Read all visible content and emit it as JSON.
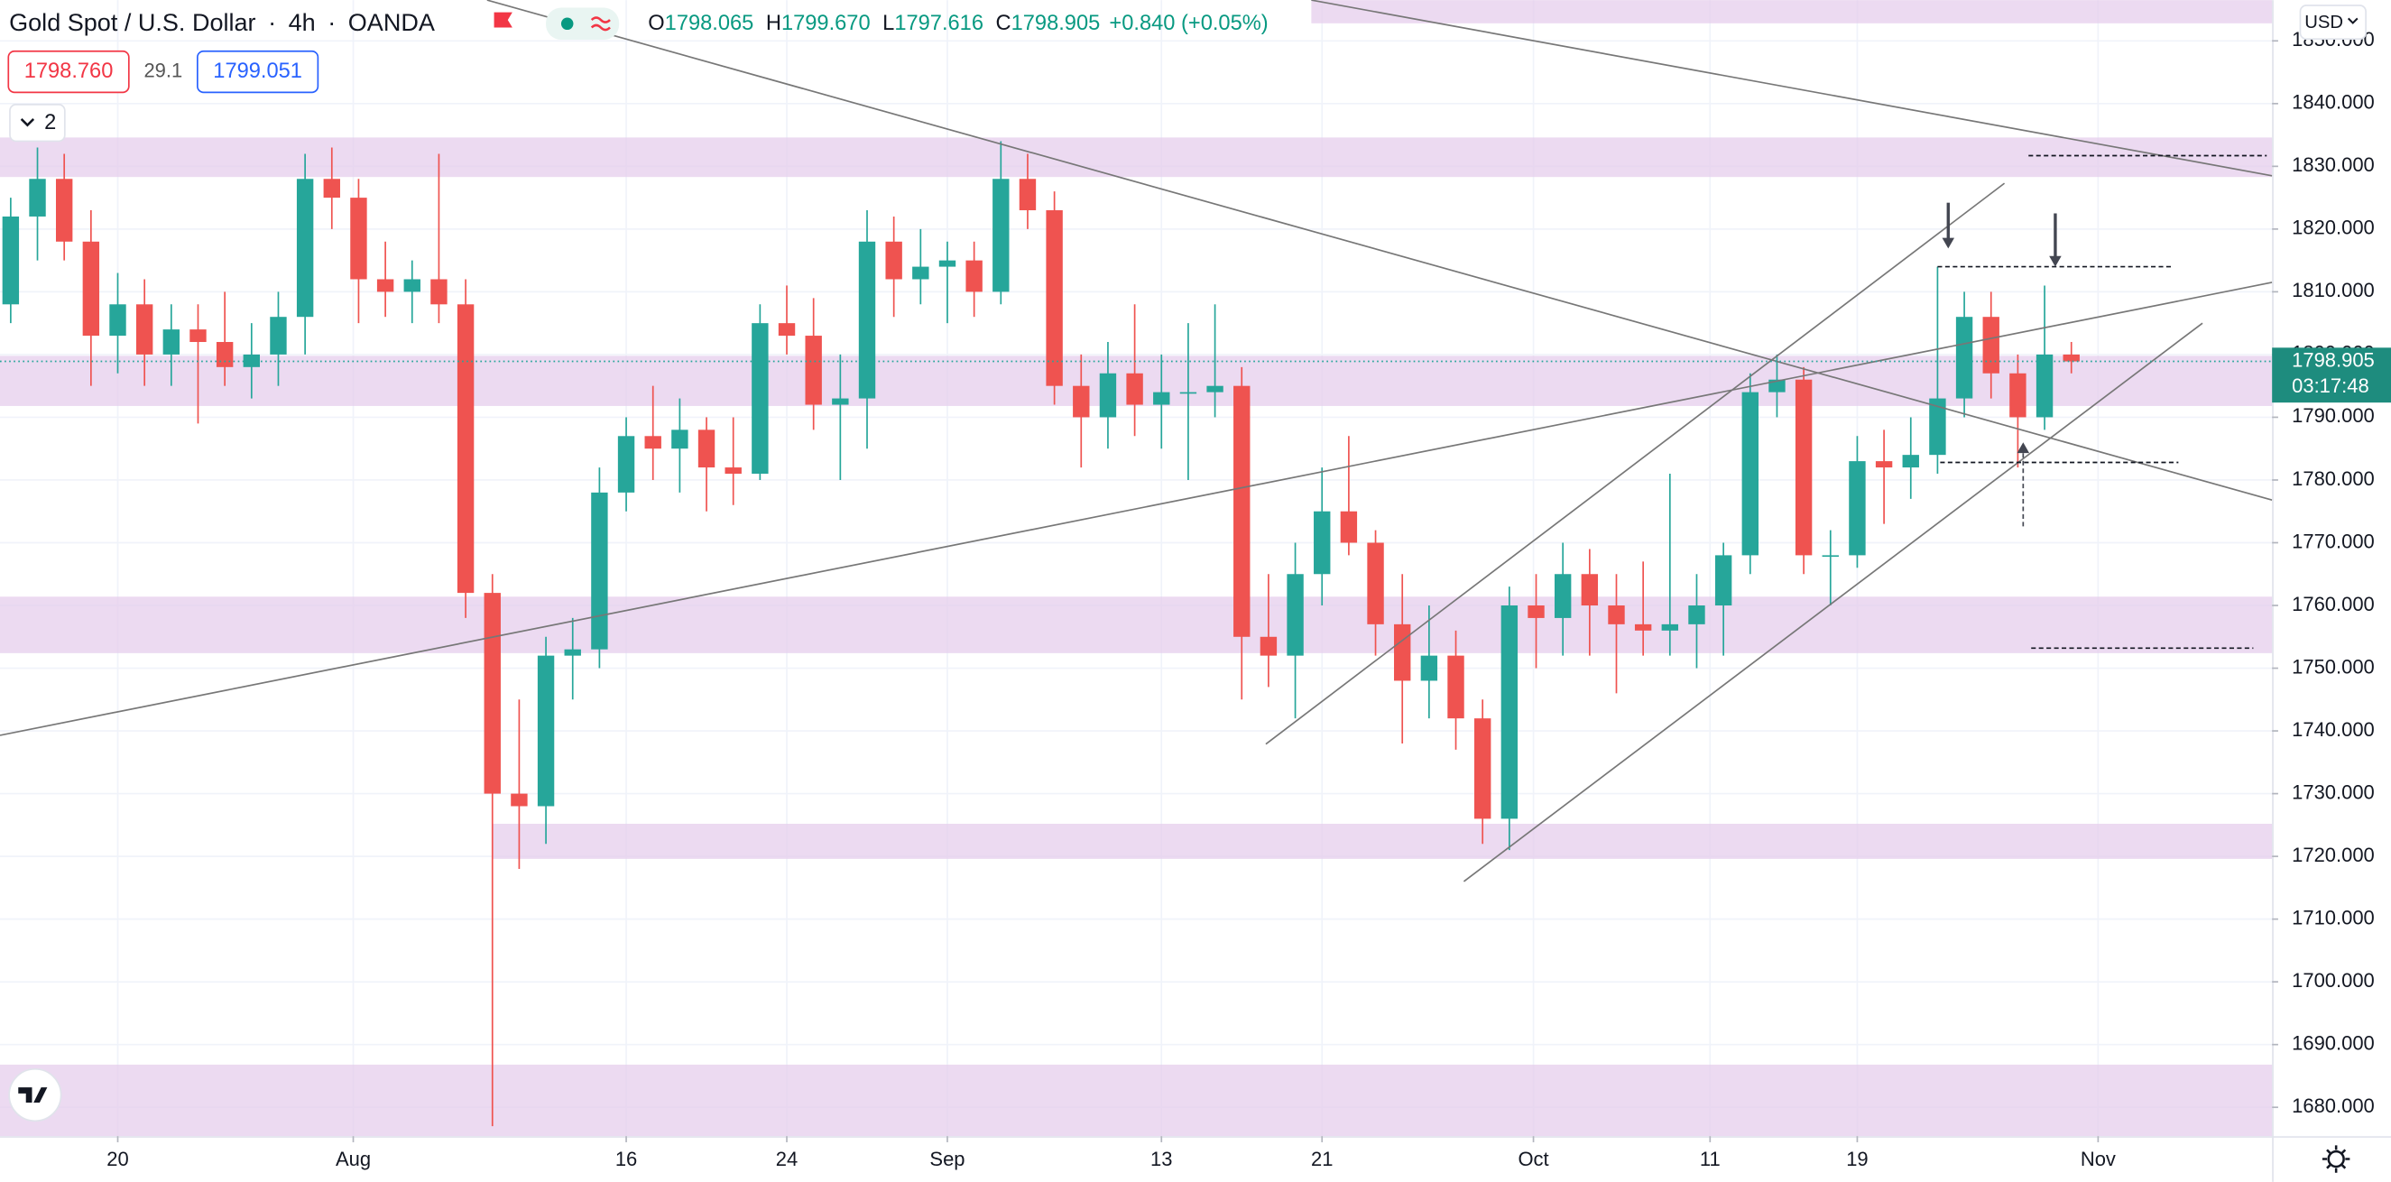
{
  "ui": {
    "symbol": "Gold Spot / U.S. Dollar",
    "interval": "4h",
    "source": "OANDA",
    "ohlc": [
      {
        "label": "O",
        "value": "1798.065"
      },
      {
        "label": "H",
        "value": "1799.670"
      },
      {
        "label": "L",
        "value": "1797.616"
      },
      {
        "label": "C",
        "value": "1798.905"
      }
    ],
    "change": "+0.840 (+0.05%)",
    "sell": "1798.760",
    "spread": "29.1",
    "buy": "1799.051",
    "indicator_count": "2",
    "currency": "USD",
    "countdown": "03:17:48"
  },
  "chart_data": {
    "type": "candlestick",
    "up_color": "#26a69a",
    "down_color": "#ef5350",
    "zone_color": "#e6cdec",
    "drawing_color": "#777777",
    "price_line_color": "#26a69a",
    "open": [
      1808,
      1822,
      1828,
      1818,
      1803,
      1808,
      1800,
      1804,
      1802,
      1798,
      1800,
      1806,
      1828,
      1825,
      1812,
      1810,
      1812,
      1808,
      1762,
      1730,
      1728,
      1752,
      1753,
      1778,
      1787,
      1785,
      1788,
      1782,
      1781,
      1805,
      1803,
      1792,
      1793,
      1818,
      1812,
      1814,
      1815,
      1810,
      1828,
      1823,
      1795,
      1790,
      1797,
      1792,
      1794,
      1794,
      1795,
      1755,
      1752,
      1765,
      1775,
      1770,
      1757,
      1748,
      1752,
      1742,
      1726,
      1760,
      1758,
      1765,
      1760,
      1757,
      1756,
      1757,
      1760,
      1768,
      1794,
      1796,
      1768,
      1768,
      1783,
      1782,
      1784,
      1793,
      1806,
      1797,
      1790,
      1800
    ],
    "high": [
      1825,
      1833,
      1832,
      1823,
      1813,
      1812,
      1808,
      1808,
      1810,
      1805,
      1810,
      1832,
      1833,
      1828,
      1818,
      1815,
      1832,
      1812,
      1765,
      1745,
      1755,
      1758,
      1782,
      1790,
      1795,
      1793,
      1790,
      1790,
      1808,
      1811,
      1809,
      1800,
      1823,
      1822,
      1820,
      1818,
      1818,
      1834,
      1832,
      1826,
      1800,
      1802,
      1808,
      1800,
      1805,
      1808,
      1798,
      1765,
      1770,
      1782,
      1787,
      1772,
      1765,
      1760,
      1756,
      1745,
      1763,
      1765,
      1770,
      1769,
      1765,
      1767,
      1781,
      1765,
      1770,
      1797,
      1800,
      1798,
      1772,
      1787,
      1788,
      1790,
      1814,
      1810,
      1810,
      1800,
      1811,
      1802
    ],
    "low": [
      1805,
      1815,
      1815,
      1795,
      1797,
      1795,
      1795,
      1789,
      1795,
      1793,
      1795,
      1800,
      1820,
      1805,
      1806,
      1805,
      1805,
      1758,
      1677,
      1718,
      1722,
      1745,
      1750,
      1775,
      1780,
      1778,
      1775,
      1776,
      1780,
      1800,
      1788,
      1780,
      1785,
      1806,
      1808,
      1805,
      1806,
      1808,
      1820,
      1792,
      1782,
      1785,
      1787,
      1785,
      1780,
      1790,
      1745,
      1747,
      1742,
      1760,
      1768,
      1752,
      1738,
      1742,
      1737,
      1722,
      1721,
      1750,
      1752,
      1752,
      1746,
      1752,
      1752,
      1750,
      1752,
      1765,
      1790,
      1765,
      1760,
      1766,
      1773,
      1777,
      1781,
      1790,
      1793,
      1782,
      1788,
      1797
    ],
    "close": [
      1822,
      1828,
      1818,
      1803,
      1808,
      1800,
      1804,
      1802,
      1798,
      1800,
      1806,
      1828,
      1825,
      1812,
      1810,
      1812,
      1808,
      1762,
      1730,
      1728,
      1752,
      1753,
      1778,
      1787,
      1785,
      1788,
      1782,
      1781,
      1805,
      1803,
      1792,
      1793,
      1818,
      1812,
      1814,
      1815,
      1810,
      1828,
      1823,
      1795,
      1790,
      1797,
      1792,
      1794,
      1794,
      1795,
      1755,
      1752,
      1765,
      1775,
      1770,
      1757,
      1748,
      1752,
      1742,
      1726,
      1760,
      1758,
      1765,
      1760,
      1757,
      1756,
      1757,
      1760,
      1768,
      1794,
      1796,
      1768,
      1768,
      1783,
      1782,
      1784,
      1793,
      1806,
      1797,
      1790,
      1800,
      1798.905
    ],
    "xlim": [
      -0.4,
      84.5
    ],
    "xticks": [
      {
        "value": 4,
        "label": "20"
      },
      {
        "value": 12.8,
        "label": "Aug"
      },
      {
        "value": 23,
        "label": "16"
      },
      {
        "value": 29,
        "label": "24"
      },
      {
        "value": 35,
        "label": "Sep"
      },
      {
        "value": 43,
        "label": "13"
      },
      {
        "value": 49,
        "label": "21"
      },
      {
        "value": 56.9,
        "label": "Oct"
      },
      {
        "value": 63.5,
        "label": "11"
      },
      {
        "value": 69,
        "label": "19"
      },
      {
        "value": 78,
        "label": "Nov"
      }
    ],
    "ylim": [
      1675.4,
      1856.5
    ],
    "yticks": [
      {
        "value": 1680,
        "label": "1680.000"
      },
      {
        "value": 1690,
        "label": "1690.000"
      },
      {
        "value": 1700,
        "label": "1700.000"
      },
      {
        "value": 1710,
        "label": "1710.000"
      },
      {
        "value": 1720,
        "label": "1720.000"
      },
      {
        "value": 1730,
        "label": "1730.000"
      },
      {
        "value": 1740,
        "label": "1740.000"
      },
      {
        "value": 1750,
        "label": "1750.000"
      },
      {
        "value": 1760,
        "label": "1760.000"
      },
      {
        "value": 1770,
        "label": "1770.000"
      },
      {
        "value": 1780,
        "label": "1780.000"
      },
      {
        "value": 1790,
        "label": "1790.000"
      },
      {
        "value": 1800,
        "label": "1800.000"
      },
      {
        "value": 1810,
        "label": "1810.000"
      },
      {
        "value": 1820,
        "label": "1820.000"
      },
      {
        "value": 1830,
        "label": "1830.000"
      },
      {
        "value": 1840,
        "label": "1840.000"
      },
      {
        "value": 1850,
        "label": "1850.000"
      }
    ],
    "zones": [
      {
        "x": [
          48.6,
          84.5
        ],
        "y": [
          1852.8,
          1856.5
        ]
      },
      {
        "x": [
          -0.4,
          84.5
        ],
        "y": [
          1828.3,
          1834.6
        ]
      },
      {
        "x": [
          -0.4,
          84.5
        ],
        "y": [
          1791.8,
          1799.8
        ]
      },
      {
        "x": [
          -0.4,
          84.5
        ],
        "y": [
          1752.4,
          1761.4
        ]
      },
      {
        "x": [
          18,
          84.5
        ],
        "y": [
          1719.6,
          1725.2
        ]
      },
      {
        "x": [
          -0.4,
          84.5
        ],
        "y": [
          1675.4,
          1686.8
        ]
      }
    ],
    "trend_lines": [
      {
        "x": [
          17.8,
          84.5
        ],
        "y": [
          1856.5,
          1776.8
        ]
      },
      {
        "x": [
          -0.4,
          84.5
        ],
        "y": [
          1739.3,
          1811.5
        ]
      },
      {
        "x": [
          48.6,
          84.5
        ],
        "y": [
          1856.5,
          1828.5
        ]
      },
      {
        "x": [
          46.9,
          74.5
        ],
        "y": [
          1737.9,
          1827.3
        ]
      },
      {
        "x": [
          54.3,
          81.9
        ],
        "y": [
          1716,
          1805
        ]
      }
    ],
    "dashed_levels": [
      {
        "x": [
          75.4,
          84.3
        ],
        "y": 1831.7
      },
      {
        "x": [
          72,
          80.8
        ],
        "y": 1814
      },
      {
        "x": [
          72.1,
          81
        ],
        "y": 1782.8
      },
      {
        "x": [
          75.5,
          83.8
        ],
        "y": 1753.2
      }
    ],
    "arrows": [
      {
        "x": 72.4,
        "y": [
          1824.2,
          1816.9
        ],
        "dashed": false
      },
      {
        "x": 76.4,
        "y": [
          1822.5,
          1814
        ],
        "dashed": false
      },
      {
        "x": 75.2,
        "y": [
          1772.6,
          1786
        ],
        "dashed": true
      }
    ]
  }
}
